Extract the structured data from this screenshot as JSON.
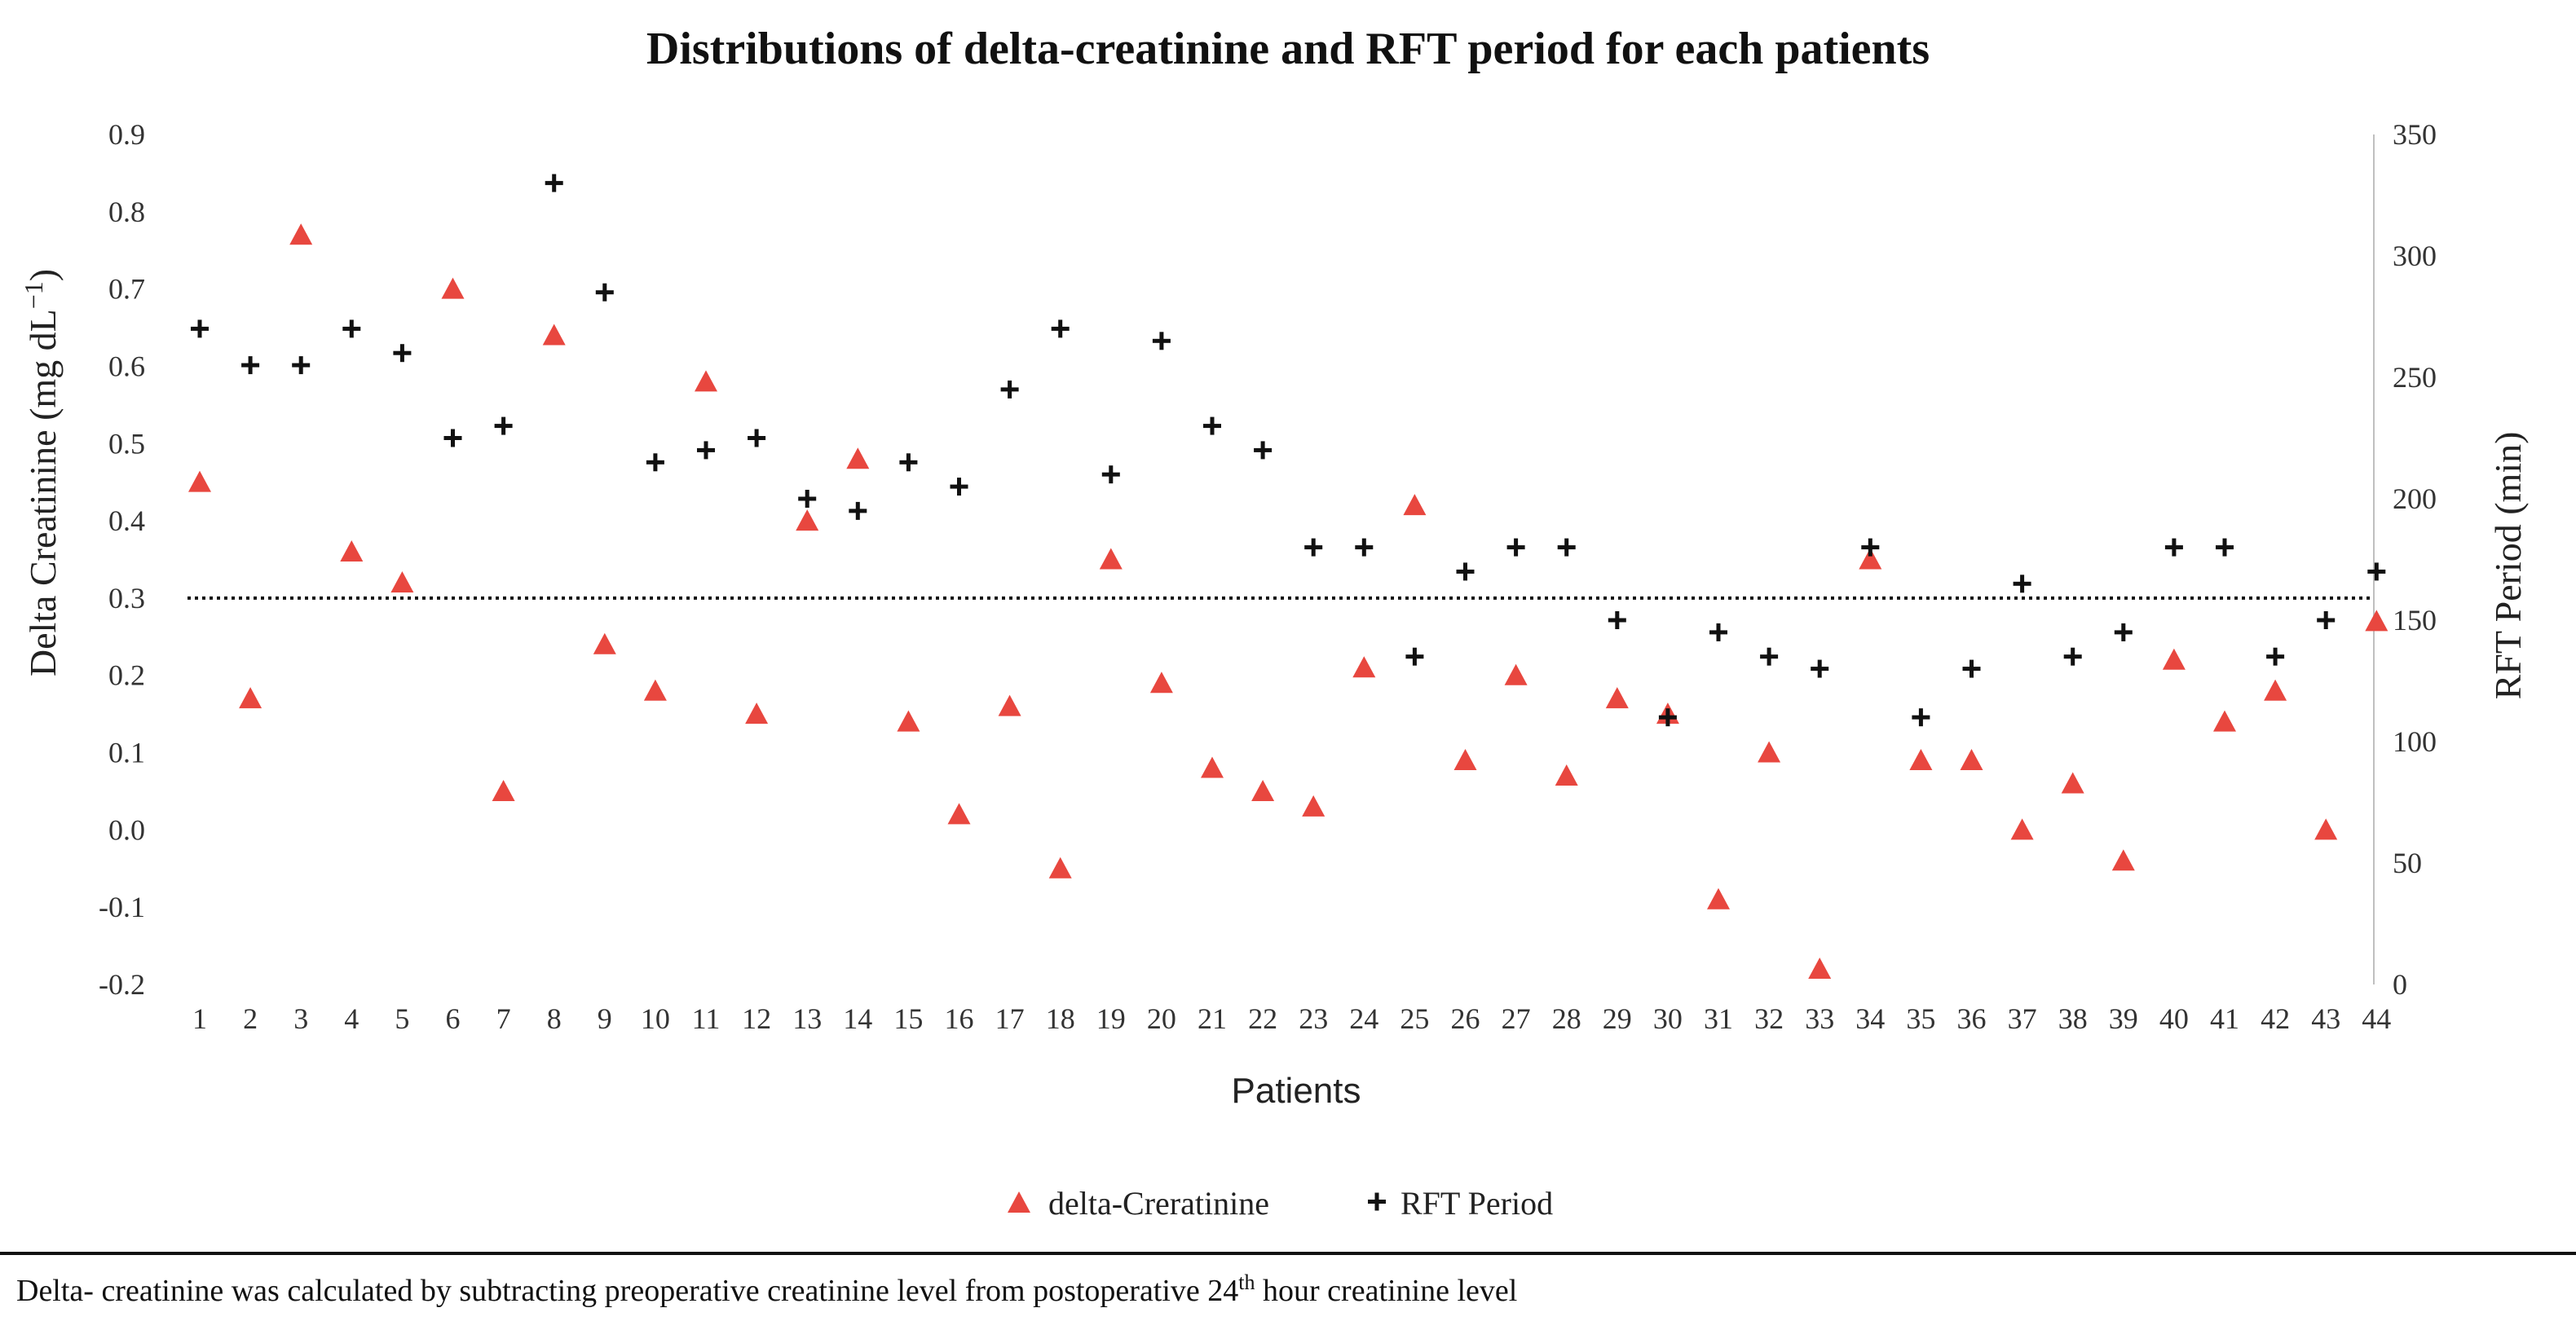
{
  "chart_data": {
    "type": "scatter",
    "title": "Distributions of delta-creatinine and RFT period for each patients",
    "xlabel": "Patients",
    "ylabel_left": "Delta Creatinine (mg dL",
    "ylabel_left_sup": "−1",
    "ylabel_left_close": ")",
    "ylabel_right": "RFT Period (min)",
    "ylim_left": [
      -0.2,
      0.9
    ],
    "ylim_right": [
      0,
      350
    ],
    "left_ticks": [
      "0.9",
      "0.8",
      "0.7",
      "0.6",
      "0.5",
      "0.4",
      "0.3",
      "0.2",
      "0.1",
      "0.0",
      "-0.1",
      "-0.2"
    ],
    "right_ticks": [
      "350",
      "300",
      "250",
      "200",
      "150",
      "100",
      "50",
      "0"
    ],
    "categories": [
      "1",
      "2",
      "3",
      "4",
      "5",
      "6",
      "7",
      "8",
      "9",
      "10",
      "11",
      "12",
      "13",
      "14",
      "15",
      "16",
      "17",
      "18",
      "19",
      "20",
      "21",
      "22",
      "23",
      "24",
      "25",
      "26",
      "27",
      "28",
      "29",
      "30",
      "31",
      "32",
      "33",
      "34",
      "35",
      "36",
      "37",
      "38",
      "39",
      "40",
      "41",
      "42",
      "43",
      "44"
    ],
    "threshold": 0.3,
    "series": [
      {
        "name": "delta-Creratinine",
        "axis": "left",
        "marker": "triangle",
        "color": "#e8473f",
        "values": [
          0.45,
          0.17,
          0.77,
          0.36,
          0.32,
          0.7,
          0.05,
          0.64,
          0.24,
          0.18,
          0.58,
          0.15,
          0.4,
          0.48,
          0.14,
          0.02,
          0.16,
          -0.05,
          0.35,
          0.19,
          0.08,
          0.05,
          0.03,
          0.21,
          0.42,
          0.09,
          0.2,
          0.07,
          0.17,
          0.15,
          -0.09,
          0.1,
          -0.18,
          0.35,
          0.09,
          0.09,
          0.0,
          0.06,
          -0.04,
          0.22,
          0.14,
          0.18,
          0.0,
          0.27
        ]
      },
      {
        "name": "RFT Period",
        "axis": "right",
        "marker": "plus",
        "color": "#111111",
        "values": [
          270,
          255,
          255,
          270,
          260,
          225,
          230,
          330,
          285,
          215,
          220,
          225,
          200,
          195,
          215,
          205,
          245,
          270,
          210,
          265,
          230,
          220,
          180,
          180,
          135,
          170,
          180,
          180,
          150,
          110,
          145,
          135,
          130,
          180,
          110,
          130,
          165,
          135,
          145,
          180,
          180,
          135,
          150,
          170
        ]
      }
    ],
    "footnote": {
      "prefix": "Delta- creatinine was calculated by subtracting preoperative creatinine level from postoperative 24",
      "sup": "th",
      "suffix": " hour creatinine level"
    }
  }
}
